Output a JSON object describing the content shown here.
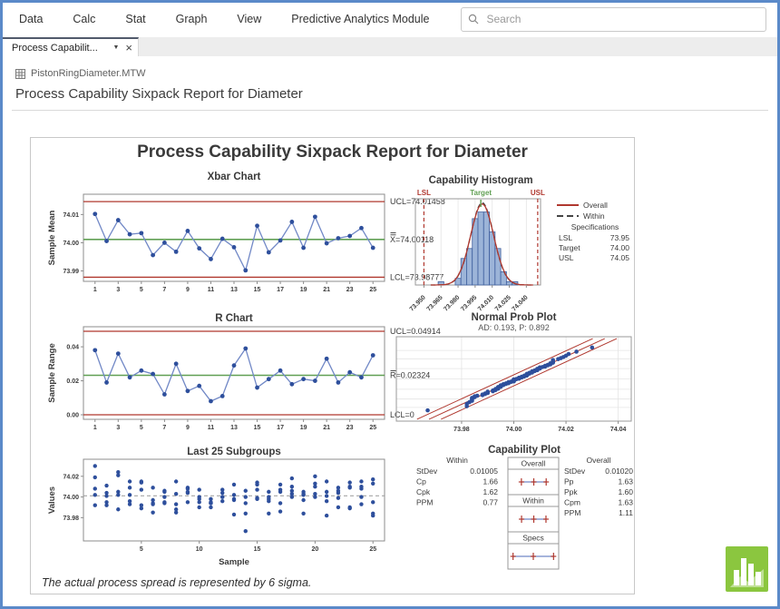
{
  "menu": {
    "items": [
      "Data",
      "Calc",
      "Stat",
      "Graph",
      "View",
      "Predictive Analytics Module"
    ]
  },
  "search": {
    "placeholder": "Search"
  },
  "tab": {
    "label": "Process Capabilit..."
  },
  "icons": {
    "caret_down": "▼",
    "close": "×"
  },
  "worksheet": {
    "name": "PistonRingDiameter.MTW"
  },
  "page_title": "Process Capability Sixpack Report for Diameter",
  "report": {
    "title": "Process Capability Sixpack Report for Diameter",
    "footnote": "The actual process spread is represented by 6 sigma."
  },
  "colors": {
    "red": "#b0382f",
    "green": "#61a054",
    "blue_line": "#7188c6",
    "blue_dot": "#2e4f9c",
    "bar_fill": "#9cb4d8",
    "bar_stroke": "#3f5f9e",
    "grid": "#e4e4e4",
    "frame": "#8c8c8c",
    "dash_dark": "#444444",
    "text": "#3a3a3a",
    "window_border": "#5b8ac9",
    "icon_green": "#8bc63f"
  },
  "chart_data": [
    {
      "kind": "control",
      "title": "Xbar Chart",
      "ylabel": "Sample Mean",
      "values": [
        74.0102,
        74.0006,
        74.008,
        74.003,
        74.0034,
        73.9956,
        74.0,
        73.9968,
        74.0042,
        73.998,
        73.9942,
        74.0014,
        73.9984,
        73.9902,
        74.006,
        73.9966,
        74.0008,
        74.0074,
        73.9982,
        74.0092,
        73.9998,
        74.0016,
        74.0024,
        74.0052,
        73.9982
      ],
      "ucl": 74.01458,
      "center": 74.00118,
      "lcl": 73.98777,
      "ucl_label": "UCL=74.01458",
      "center_label": "X=74.00118",
      "lcl_label": "LCL=73.98777",
      "center_overlines": 2,
      "yticks": [
        73.99,
        74.0,
        74.01
      ],
      "ytick_labels": [
        "73.99",
        "74.00",
        "74.01"
      ],
      "xticks": [
        1,
        3,
        5,
        7,
        9,
        11,
        13,
        15,
        17,
        19,
        21,
        23,
        25
      ],
      "ylim": [
        73.9863,
        74.0172
      ]
    },
    {
      "kind": "histogram",
      "title": "Capability Histogram",
      "bins": {
        "centers": [
          73.965,
          73.97,
          73.975,
          73.98,
          73.985,
          73.99,
          73.995,
          74.0,
          74.005,
          74.01,
          74.015,
          74.02,
          74.025,
          74.03
        ],
        "counts": [
          1,
          0,
          0,
          2,
          8,
          11,
          20,
          22,
          22,
          16,
          11,
          4,
          1,
          1
        ]
      },
      "bin_width": 0.005,
      "n": 125,
      "lsl": 73.95,
      "target": 74.0,
      "usl": 74.05,
      "spec_labels": [
        "LSL",
        "Target",
        "USL"
      ],
      "xticks": [
        73.95,
        73.965,
        73.98,
        73.995,
        74.01,
        74.025,
        74.04
      ],
      "xtick_labels": [
        "73.950",
        "73.965",
        "73.980",
        "73.995",
        "74.010",
        "74.025",
        "74.040"
      ],
      "xlim": [
        73.9425,
        74.0525
      ],
      "curves": {
        "mean": 74.00118,
        "sd_overall": 0.0102,
        "sd_within": 0.01005
      },
      "legend": [
        {
          "label": "Overall",
          "style": "solid"
        },
        {
          "label": "Within",
          "style": "dashed"
        }
      ],
      "specifications": {
        "header": "Specifications",
        "rows": [
          [
            "LSL",
            "73.95"
          ],
          [
            "Target",
            "74.00"
          ],
          [
            "USL",
            "74.05"
          ]
        ]
      }
    },
    {
      "kind": "control",
      "title": "R Chart",
      "ylabel": "Sample Range",
      "values": [
        0.038,
        0.019,
        0.036,
        0.022,
        0.026,
        0.024,
        0.012,
        0.03,
        0.014,
        0.017,
        0.008,
        0.011,
        0.029,
        0.039,
        0.016,
        0.021,
        0.026,
        0.018,
        0.021,
        0.02,
        0.033,
        0.019,
        0.025,
        0.022,
        0.035
      ],
      "ucl": 0.04914,
      "center": 0.02324,
      "lcl": 0,
      "ucl_label": "UCL=0.04914",
      "center_label": "R=0.02324",
      "lcl_label": "LCL=0",
      "center_overlines": 1,
      "yticks": [
        0,
        0.02,
        0.04
      ],
      "ytick_labels": [
        "0.00",
        "0.02",
        "0.04"
      ],
      "xticks": [
        1,
        3,
        5,
        7,
        9,
        11,
        13,
        15,
        17,
        19,
        21,
        23,
        25
      ],
      "ylim": [
        -0.00267,
        0.05181
      ]
    },
    {
      "kind": "probplot",
      "title": "Normal Prob Plot",
      "subtitle": "AD: 0.193, P: 0.892",
      "xticks": [
        73.98,
        74.0,
        74.02,
        74.04
      ],
      "xtick_labels": [
        "73.98",
        "74.00",
        "74.02",
        "74.04"
      ],
      "xlim": [
        73.955,
        74.045
      ],
      "grid_z": [
        -2.326,
        -1.645,
        -0.842,
        0,
        0.842,
        1.645,
        2.326
      ],
      "fit": {
        "mean": 74.00118,
        "sd": 0.0102,
        "band_dx": 0.0046
      }
    },
    {
      "kind": "subgroups",
      "title": "Last 25 Subgroups",
      "ylabel": "Values",
      "xlabel": "Sample",
      "yticks": [
        73.98,
        74.0,
        74.02
      ],
      "ytick_labels": [
        "73.98",
        "74.00",
        "74.02"
      ],
      "xticks": [
        5,
        10,
        15,
        20,
        25
      ],
      "ylim": [
        73.9575,
        74.0365
      ],
      "center": 74.00118,
      "data": [
        [
          74.03,
          74.002,
          74.019,
          73.992,
          74.008
        ],
        [
          73.995,
          73.992,
          74.001,
          74.011,
          74.004
        ],
        [
          73.988,
          74.024,
          74.021,
          74.005,
          74.002
        ],
        [
          74.002,
          73.996,
          73.993,
          74.015,
          74.009
        ],
        [
          73.992,
          74.007,
          74.015,
          73.989,
          74.014
        ],
        [
          74.009,
          73.994,
          73.997,
          73.985,
          73.993
        ],
        [
          73.995,
          74.006,
          73.994,
          74.0,
          74.005
        ],
        [
          73.985,
          74.003,
          73.993,
          74.015,
          73.988
        ],
        [
          74.008,
          73.995,
          74.009,
          74.005,
          74.004
        ],
        [
          73.998,
          74.0,
          73.99,
          74.007,
          73.995
        ],
        [
          73.994,
          73.998,
          73.994,
          73.995,
          73.99
        ],
        [
          74.004,
          74.0,
          74.007,
          74.0,
          73.996
        ],
        [
          73.983,
          74.002,
          73.998,
          73.997,
          74.012
        ],
        [
          74.006,
          73.967,
          73.994,
          74.0,
          73.984
        ],
        [
          74.012,
          74.014,
          73.998,
          73.999,
          74.007
        ],
        [
          74.0,
          73.984,
          74.005,
          73.998,
          73.996
        ],
        [
          73.994,
          74.012,
          73.986,
          74.005,
          74.007
        ],
        [
          74.006,
          74.01,
          74.018,
          74.003,
          74.0
        ],
        [
          73.984,
          74.002,
          74.003,
          74.005,
          73.997
        ],
        [
          74.0,
          74.01,
          74.013,
          74.02,
          74.003
        ],
        [
          73.982,
          74.001,
          74.015,
          74.005,
          73.996
        ],
        [
          74.004,
          73.999,
          73.99,
          74.006,
          74.009
        ],
        [
          74.01,
          73.989,
          73.99,
          74.009,
          74.014
        ],
        [
          74.015,
          74.008,
          73.993,
          74.0,
          74.01
        ],
        [
          73.982,
          73.984,
          73.995,
          74.017,
          74.013
        ]
      ]
    },
    {
      "kind": "capability",
      "title": "Capability Plot",
      "xlim": [
        73.944,
        74.056
      ],
      "sections": [
        {
          "label": "Overall",
          "lo": 73.9706,
          "hi": 74.0318,
          "mid": 74.00118
        },
        {
          "label": "Within",
          "lo": 73.971,
          "hi": 74.0313,
          "mid": 74.00118
        },
        {
          "label": "Specs",
          "lo": 73.95,
          "hi": 74.05,
          "mid": 74.0
        }
      ],
      "left_stats": {
        "header": "Within",
        "rows": [
          [
            "StDev",
            "0.01005"
          ],
          [
            "Cp",
            "1.66"
          ],
          [
            "Cpk",
            "1.62"
          ],
          [
            "PPM",
            "0.77"
          ]
        ]
      },
      "right_stats": {
        "header": "Overall",
        "rows": [
          [
            "StDev",
            "0.01020"
          ],
          [
            "Pp",
            "1.63"
          ],
          [
            "Ppk",
            "1.60"
          ],
          [
            "Cpm",
            "1.63"
          ],
          [
            "PPM",
            "1.11"
          ]
        ]
      }
    }
  ]
}
